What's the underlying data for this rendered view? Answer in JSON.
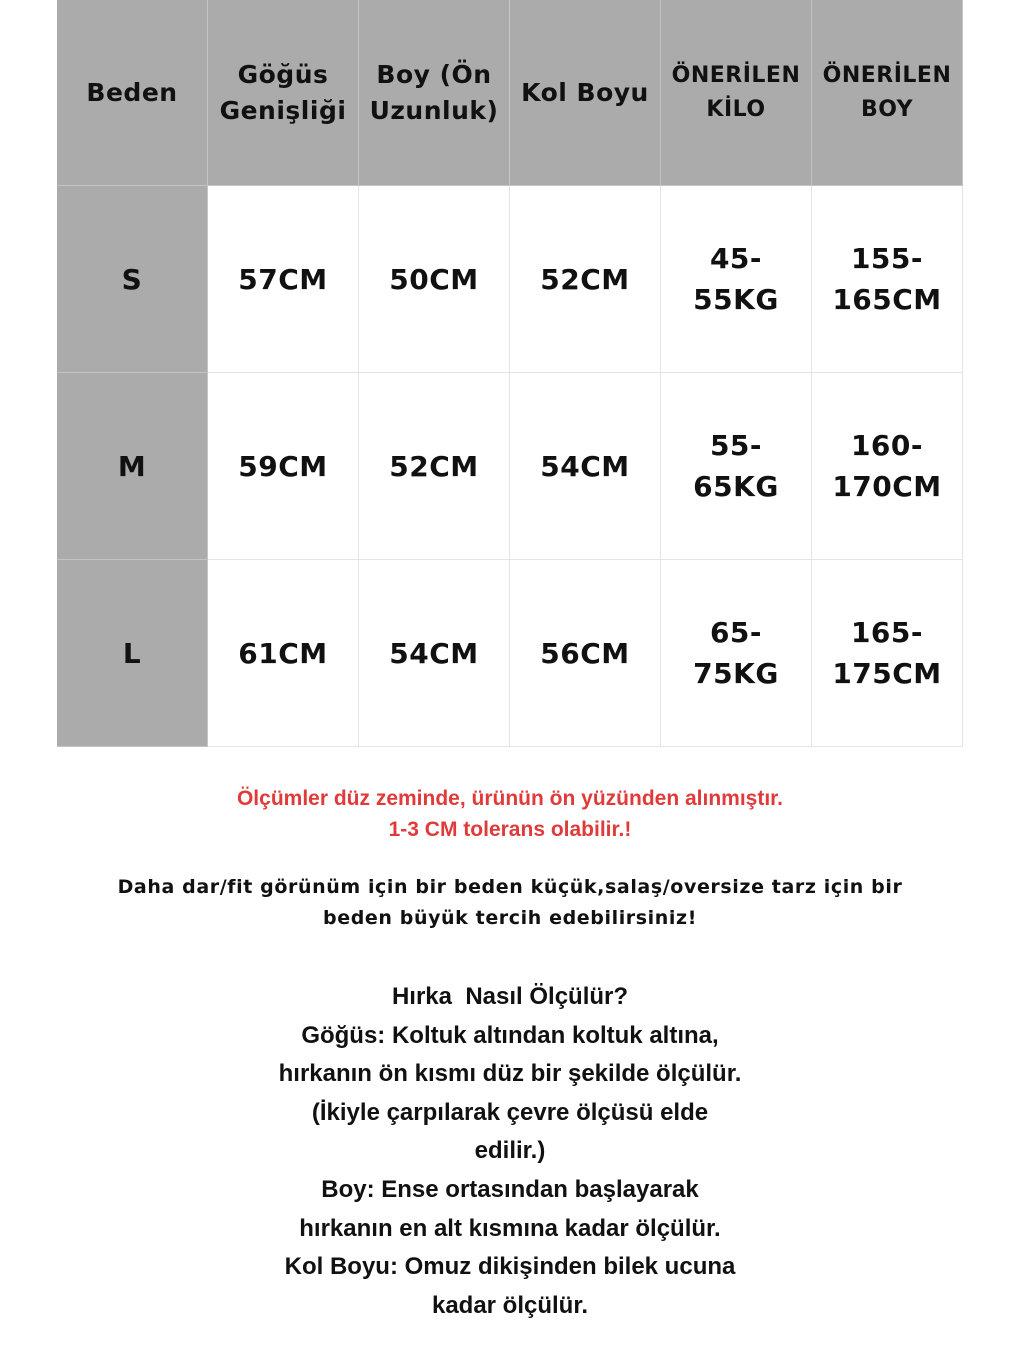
{
  "table": {
    "header": [
      [
        "Beden"
      ],
      [
        "Göğüs",
        "Genişliği"
      ],
      [
        "Boy (Ön",
        "Uzunluk)"
      ],
      [
        "Kol Boyu"
      ],
      [
        "ÖNERİLEN",
        "KİLO"
      ],
      [
        "ÖNERİLEN",
        "BOY"
      ]
    ],
    "rows": [
      [
        [
          "S"
        ],
        [
          "57CM"
        ],
        [
          "50CM"
        ],
        [
          "52CM"
        ],
        [
          "45-",
          "55KG"
        ],
        [
          "155-",
          "165CM"
        ]
      ],
      [
        [
          "M"
        ],
        [
          "59CM"
        ],
        [
          "52CM"
        ],
        [
          "54CM"
        ],
        [
          "55-",
          "65KG"
        ],
        [
          "160-",
          "170CM"
        ]
      ],
      [
        [
          "L"
        ],
        [
          "61CM"
        ],
        [
          "54CM"
        ],
        [
          "56CM"
        ],
        [
          "65-",
          "75KG"
        ],
        [
          "165-",
          "175CM"
        ]
      ]
    ]
  },
  "notes": {
    "warning": [
      "Ölçümler düz zeminde, ürünün ön yüzünden alınmıştır.",
      "1-3 CM tolerans olabilir.!"
    ],
    "advice": [
      "Daha dar/fit görünüm için bir beden küçük,salaş/oversize tarz için bir",
      "beden büyük tercih edebilirsiniz!"
    ],
    "howto": [
      "Hırka  Nasıl Ölçülür?",
      "Göğüs: Koltuk altından koltuk altına,",
      "hırkanın ön kısmı düz bir şekilde ölçülür.",
      "(İkiyle çarpılarak çevre ölçüsü elde",
      "edilir.)",
      "Boy: Ense ortasından başlayarak",
      "hırkanın en alt kısmına kadar ölçülür.",
      "Kol Boyu: Omuz dikişinden bilek ucuna",
      "kadar ölçülür."
    ]
  }
}
